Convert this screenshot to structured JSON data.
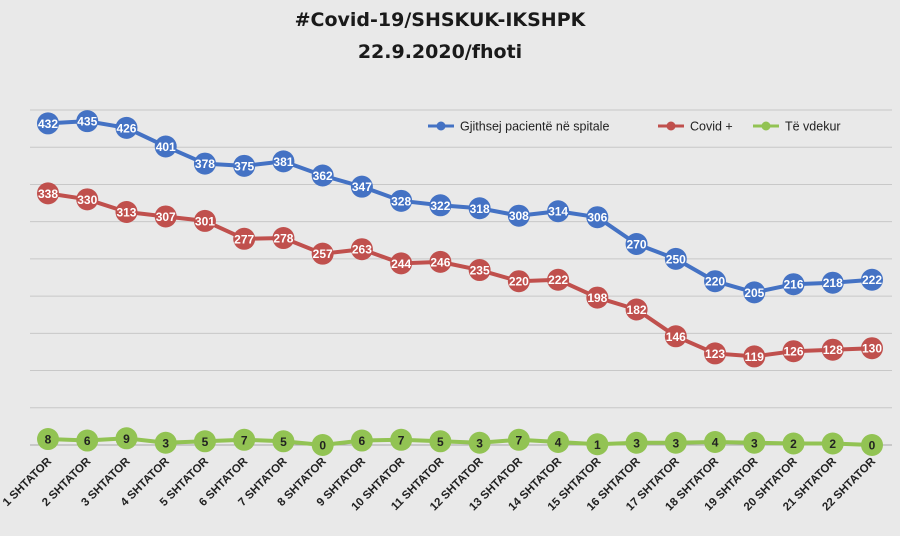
{
  "chart_data": {
    "type": "line",
    "title": "#Covid-19/SHSKUK-IKSHPK",
    "subtitle": "22.9.2020/fhoti",
    "categories": [
      "1 SHTATOR",
      "2 SHTATOR",
      "3 SHTATOR",
      "4 SHTATOR",
      "5 SHTATOR",
      "6 SHTATOR",
      "7 SHTATOR",
      "8 SHTATOR",
      "9 SHTATOR",
      "10 SHTATOR",
      "11 SHTATOR",
      "12 SHTATOR",
      "13 SHTATOR",
      "14 SHTATOR",
      "15 SHTATOR",
      "16 SHTATOR",
      "17 SHTATOR",
      "18 SHTATOR",
      "19 SHTATOR",
      "20 SHTATOR",
      "21 SHTATOR",
      "22 SHTATOR"
    ],
    "series": [
      {
        "name": "Gjithsej pacientë në spitale",
        "color": "#4472c4",
        "label_color": "#ffffff",
        "values": [
          432,
          435,
          426,
          401,
          378,
          375,
          381,
          362,
          347,
          328,
          322,
          318,
          308,
          314,
          306,
          270,
          250,
          220,
          205,
          216,
          218,
          222
        ]
      },
      {
        "name": "Covid +",
        "color": "#c0504d",
        "label_color": "#ffffff",
        "values": [
          338,
          330,
          313,
          307,
          301,
          277,
          278,
          257,
          263,
          244,
          246,
          235,
          220,
          222,
          198,
          182,
          146,
          123,
          119,
          126,
          128,
          130
        ]
      },
      {
        "name": "Të vdekur",
        "color": "#92c353",
        "label_color": "#222222",
        "values": [
          8,
          6,
          9,
          3,
          5,
          7,
          5,
          0,
          6,
          7,
          5,
          3,
          7,
          4,
          1,
          3,
          3,
          4,
          3,
          2,
          2,
          0
        ]
      }
    ],
    "ylim": [
      0,
      450
    ],
    "grid": true,
    "legend_position": "top-right"
  }
}
